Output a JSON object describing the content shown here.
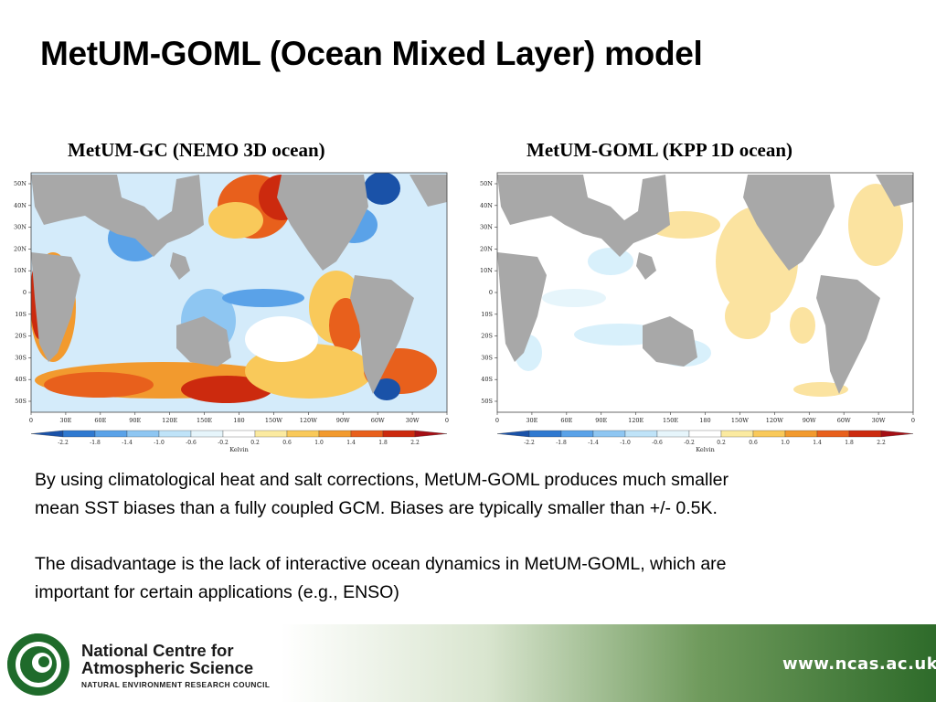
{
  "slide": {
    "title": "MetUM-GOML (Ocean Mixed Layer) model",
    "paragraph1_line1": "By using climatological heat and salt corrections, MetUM-GOML produces much smaller",
    "paragraph1_line2": "mean SST biases than a fully coupled GCM.  Biases are typically smaller than +/- 0.5K.",
    "paragraph2_line1": "The disadvantage is the lack of interactive ocean dynamics in MetUM-GOML, which are",
    "paragraph2_line2": "important for certain applications (e.g., ENSO)"
  },
  "chart_data": [
    {
      "type": "heatmap",
      "title": "MetUM-GC (NEMO 3D ocean)",
      "x_tick_labels": [
        "0",
        "30E",
        "60E",
        "90E",
        "120E",
        "150E",
        "180",
        "150W",
        "120W",
        "90W",
        "60W",
        "30W",
        "0"
      ],
      "y_tick_labels": [
        "50N",
        "40N",
        "30N",
        "20N",
        "10N",
        "0",
        "10S",
        "20S",
        "30S",
        "40S",
        "50S"
      ],
      "colorbar": {
        "label": "Kelvin",
        "ticks": [
          "-2.2",
          "-1.8",
          "-1.4",
          "-1.0",
          "-0.6",
          "-0.2",
          "0.2",
          "0.6",
          "1.0",
          "1.4",
          "1.8",
          "2.2"
        ],
        "colors": [
          "#1a52a8",
          "#2f79d0",
          "#5aa2e8",
          "#8ec6f2",
          "#bfe3f8",
          "#e6f5fb",
          "#ffffff",
          "#fbeaa0",
          "#f9c95a",
          "#f29a2e",
          "#e8601c",
          "#cc2a0e",
          "#a50f15"
        ]
      }
    },
    {
      "type": "heatmap",
      "title": "MetUM-GOML (KPP 1D ocean)",
      "x_tick_labels": [
        "0",
        "30E",
        "60E",
        "90E",
        "120E",
        "150E",
        "180",
        "150W",
        "120W",
        "90W",
        "60W",
        "30W",
        "0"
      ],
      "y_tick_labels": [
        "50N",
        "40N",
        "30N",
        "20N",
        "10N",
        "0",
        "10S",
        "20S",
        "30S",
        "40S",
        "50S"
      ],
      "colorbar": {
        "label": "Kelvin",
        "ticks": [
          "-2.2",
          "-1.8",
          "-1.4",
          "-1.0",
          "-0.6",
          "-0.2",
          "0.2",
          "0.6",
          "1.0",
          "1.4",
          "1.8",
          "2.2"
        ],
        "colors": [
          "#1a52a8",
          "#2f79d0",
          "#5aa2e8",
          "#8ec6f2",
          "#bfe3f8",
          "#e6f5fb",
          "#ffffff",
          "#fbeaa0",
          "#f9c95a",
          "#f29a2e",
          "#e8601c",
          "#cc2a0e",
          "#a50f15"
        ]
      }
    }
  ],
  "footer": {
    "org_line1": "National Centre for",
    "org_line2": "Atmospheric Science",
    "org_line3": "NATURAL ENVIRONMENT RESEARCH COUNCIL",
    "url": "www.ncas.ac.uk",
    "logo_icon": "ncas-swirl-icon",
    "brand_green": "#1f6b2b"
  }
}
